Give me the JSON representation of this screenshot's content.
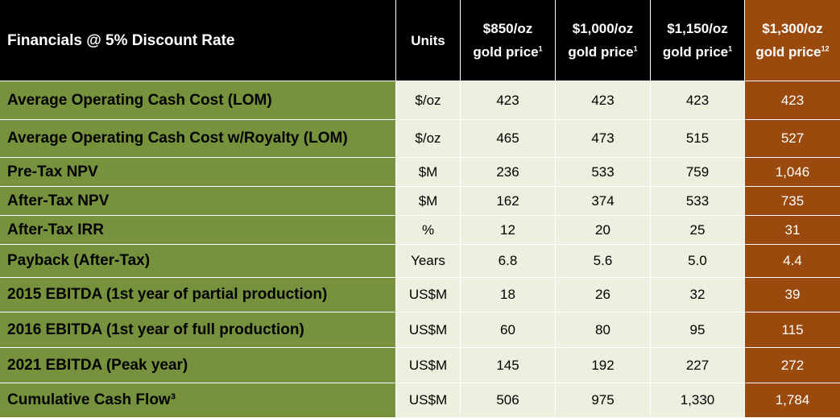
{
  "header": {
    "title": "Financials @ 5% Discount Rate",
    "units": "Units",
    "scenarios": [
      {
        "price": "$850/oz",
        "sub": "gold price",
        "note": "1"
      },
      {
        "price": "$1,000/oz",
        "sub": "gold price",
        "note": "1"
      },
      {
        "price": "$1,150/oz",
        "sub": "gold price",
        "note": "1"
      },
      {
        "price": "$1,300/oz",
        "sub": "gold price",
        "note": "12"
      }
    ]
  },
  "rows": [
    {
      "label": "Average Operating Cash Cost (LOM)",
      "unit": "$/oz",
      "values": [
        "423",
        "423",
        "423",
        "423"
      ]
    },
    {
      "label": "Average Operating Cash Cost w/Royalty (LOM)",
      "unit": "$/oz",
      "values": [
        "465",
        "473",
        "515",
        "527"
      ]
    },
    {
      "label": "Pre-Tax NPV",
      "unit": "$M",
      "values": [
        "236",
        "533",
        "759",
        "1,046"
      ]
    },
    {
      "label": "After-Tax NPV",
      "unit": "$M",
      "values": [
        "162",
        "374",
        "533",
        "735"
      ]
    },
    {
      "label": "After-Tax IRR",
      "unit": "%",
      "values": [
        "12",
        "20",
        "25",
        "31"
      ]
    },
    {
      "label": "Payback (After-Tax)",
      "unit": "Years",
      "values": [
        "6.8",
        "5.6",
        "5.0",
        "4.4"
      ]
    },
    {
      "label": "2015 EBITDA (1st year of partial production)",
      "unit": "US$M",
      "values": [
        "18",
        "26",
        "32",
        "39"
      ]
    },
    {
      "label": "2016 EBITDA (1st year of full production)",
      "unit": "US$M",
      "values": [
        "60",
        "80",
        "95",
        "115"
      ]
    },
    {
      "label": "2021 EBITDA (Peak year)",
      "unit": "US$M",
      "values": [
        "145",
        "192",
        "227",
        "272"
      ]
    },
    {
      "label": "Cumulative Cash Flow³",
      "unit": "US$M",
      "values": [
        "506",
        "975",
        "1,330",
        "1,784"
      ]
    }
  ],
  "colors": {
    "header_bg": "#000000",
    "label_bg": "#76923c",
    "cell_bg": "#ebf1de",
    "highlight_bg": "#9a4a0c"
  }
}
